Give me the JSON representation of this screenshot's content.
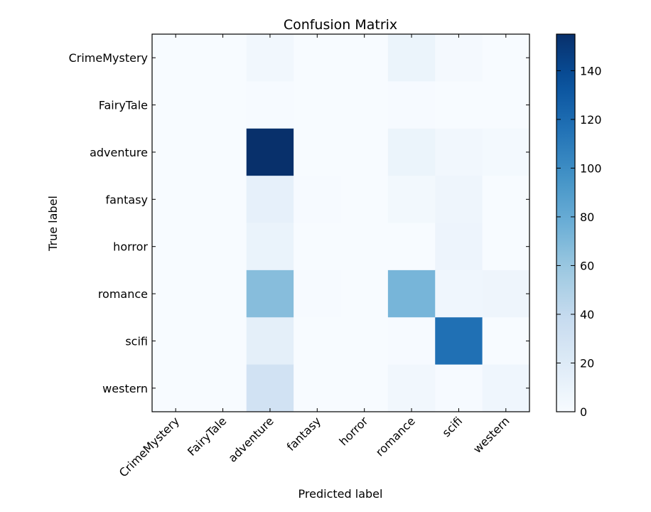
{
  "chart_data": {
    "type": "heatmap",
    "title": "Confusion Matrix",
    "xlabel": "Predicted label",
    "ylabel": "True label",
    "x_categories": [
      "CrimeMystery",
      "FairyTale",
      "adventure",
      "fantasy",
      "horror",
      "romance",
      "scifi",
      "western"
    ],
    "y_categories": [
      "CrimeMystery",
      "FairyTale",
      "adventure",
      "fantasy",
      "horror",
      "romance",
      "scifi",
      "western"
    ],
    "values": [
      [
        0,
        0,
        5,
        0,
        0,
        9,
        2,
        0
      ],
      [
        0,
        0,
        1,
        0,
        0,
        1,
        0,
        0
      ],
      [
        0,
        0,
        155,
        0,
        0,
        9,
        5,
        3
      ],
      [
        0,
        0,
        13,
        1,
        0,
        4,
        7,
        0
      ],
      [
        0,
        0,
        10,
        0,
        0,
        0,
        8,
        0
      ],
      [
        0,
        0,
        67,
        1,
        0,
        73,
        6,
        7
      ],
      [
        0,
        0,
        15,
        0,
        0,
        1,
        117,
        0
      ],
      [
        0,
        0,
        30,
        0,
        0,
        5,
        1,
        6
      ]
    ],
    "colormap": "Blues",
    "color_range": [
      0,
      155
    ],
    "colorbar_ticks": [
      0,
      20,
      40,
      60,
      80,
      100,
      120,
      140
    ],
    "grid": false
  }
}
